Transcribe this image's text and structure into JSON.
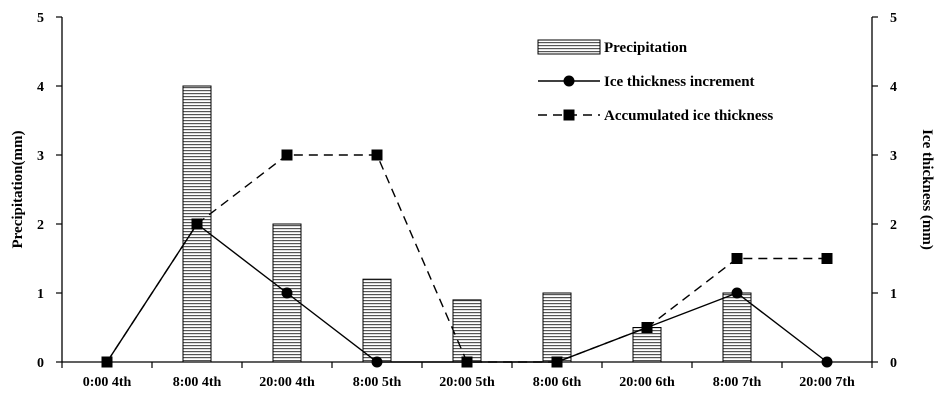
{
  "chart_data": {
    "type": "bar",
    "title": "",
    "categories": [
      "0:00 4th",
      "8:00 4th",
      "20:00 4th",
      "8:00 5th",
      "20:00 5th",
      "8:00 6th",
      "20:00 6th",
      "8:00 7th",
      "20:00 7th"
    ],
    "ylabel": "Precipitation(mm)",
    "y2label": "Ice thickness (mm)",
    "ylim": [
      0,
      5
    ],
    "y2lim": [
      0,
      5
    ],
    "yticks": [
      "0",
      "1",
      "2",
      "3",
      "4",
      "5"
    ],
    "series": [
      {
        "name": "Precipitation",
        "type": "bar",
        "axis": "left",
        "values": [
          0,
          4,
          2,
          1.2,
          0.9,
          1,
          0.5,
          1,
          0
        ]
      },
      {
        "name": "Ice thickness increment",
        "type": "line",
        "style": "solid",
        "marker": "circle",
        "axis": "right",
        "values": [
          0,
          2,
          1,
          0,
          0,
          0,
          0.5,
          1,
          0
        ]
      },
      {
        "name": "Accumulated ice thickness",
        "type": "line",
        "style": "dashed",
        "marker": "square",
        "axis": "right",
        "values": [
          0,
          2,
          3,
          3,
          0,
          0,
          0.5,
          1.5,
          1.5
        ]
      }
    ],
    "legend_position": "top-right",
    "grid": false
  }
}
